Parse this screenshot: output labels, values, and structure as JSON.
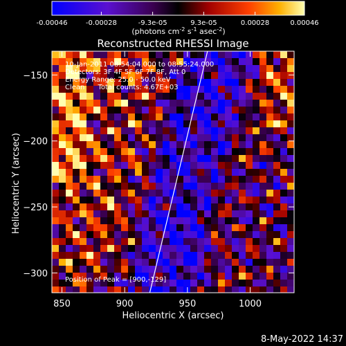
{
  "colorbar": {
    "ticks": [
      "-0.00046",
      "-0.00028",
      "-9.3e-05",
      "9.3e-05",
      "0.00028",
      "0.00046"
    ],
    "unit_parts": [
      "(photons cm",
      "-2",
      " s",
      "-1",
      " asec",
      "-2",
      ")"
    ]
  },
  "chart_data": {
    "type": "heatmap",
    "title": "Reconstructed RHESSI Image",
    "xlabel": "Heliocentric X (arcsec)",
    "ylabel": "Heliocentric Y (arcsec)",
    "xlim": [
      842,
      1035
    ],
    "ylim": [
      -315,
      -132
    ],
    "x_ticks": [
      850,
      900,
      950,
      1000
    ],
    "y_ticks": [
      -150,
      -200,
      -250,
      -300
    ],
    "color_range": [
      -0.00046,
      0.00046
    ],
    "annotations": [
      "10-Jan-2011 08:54:04.000 to 08:55:24.000",
      "Detectors: 3F 4F 5F 6F 7F 8F, Att 0",
      "Energy Range: 25.0 - 50.0 keV",
      "Clean      Total counts: 4.67E+03"
    ],
    "peak_label": "Position of Peak = [900,-129]",
    "limb_x": [
      920,
      966
    ],
    "limb_y": [
      -315,
      -132
    ]
  },
  "footer": {
    "timestamp": "8-May-2022 14:37"
  }
}
